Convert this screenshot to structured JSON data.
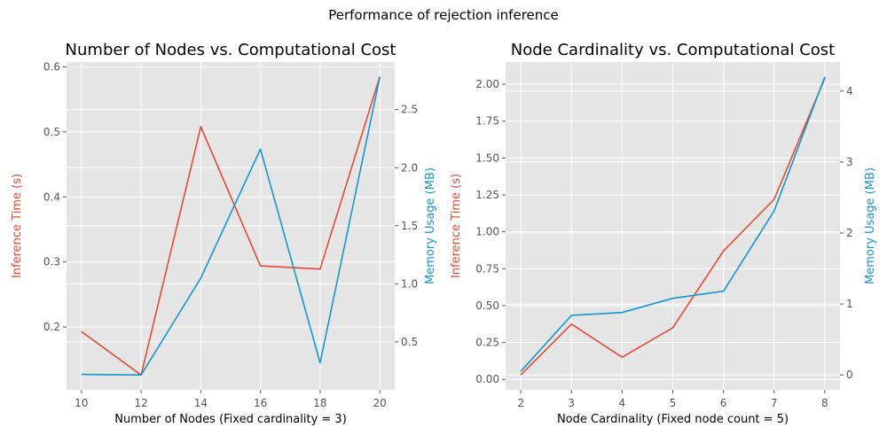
{
  "suptitle": "Performance of rejection inference",
  "colors": {
    "time": "#E24A33",
    "memory": "#1497CC",
    "panel_bg": "#E5E5E5",
    "grid": "#FFFFFF",
    "tick": "#555555"
  },
  "chart_data": [
    {
      "type": "line",
      "title": "Number of Nodes vs. Computational Cost",
      "xlabel": "Number of Nodes (Fixed cardinality = 3)",
      "ylabel": "Inference Time (s)",
      "y2label": "Memory Usage (MB)",
      "x": [
        10,
        12,
        14,
        16,
        18,
        20
      ],
      "xlim": [
        9.5,
        20.5
      ],
      "ylim": [
        0.1033,
        0.6075
      ],
      "y2lim": [
        0.087,
        2.91
      ],
      "xticks": [
        10,
        12,
        14,
        16,
        18,
        20
      ],
      "yticks": [
        0.2,
        0.3,
        0.4,
        0.5,
        0.6
      ],
      "ytick_labels": [
        "0.2",
        "0.3",
        "0.4",
        "0.5",
        "0.6"
      ],
      "y2ticks": [
        0.5,
        1.0,
        1.5,
        2.0,
        2.5
      ],
      "y2tick_labels": [
        "0.5",
        "1.0",
        "1.5",
        "2.0",
        "2.5"
      ],
      "grid": true,
      "series": [
        {
          "axis": "left",
          "values": [
            0.193,
            0.126,
            0.508,
            0.294,
            0.289,
            0.585
          ]
        },
        {
          "axis": "right",
          "values": [
            0.22,
            0.215,
            1.05,
            2.16,
            0.32,
            2.78
          ]
        }
      ]
    },
    {
      "type": "line",
      "title": "Node Cardinality vs. Computational Cost",
      "xlabel": "Node Cardinality (Fixed node count = 5)",
      "ylabel": "Inference Time (s)",
      "y2label": "Memory Usage (MB)",
      "x": [
        2,
        3,
        4,
        5,
        6,
        7,
        8
      ],
      "xlim": [
        1.7,
        8.3
      ],
      "ylim": [
        -0.0706,
        2.1504
      ],
      "y2lim": [
        -0.21,
        4.41
      ],
      "xticks": [
        2,
        3,
        4,
        5,
        6,
        7,
        8
      ],
      "yticks": [
        0.0,
        0.25,
        0.5,
        0.75,
        1.0,
        1.25,
        1.5,
        1.75,
        2.0
      ],
      "ytick_labels": [
        "0.00",
        "0.25",
        "0.50",
        "0.75",
        "1.00",
        "1.25",
        "1.50",
        "1.75",
        "2.00"
      ],
      "y2ticks": [
        0,
        1,
        2,
        3,
        4
      ],
      "y2tick_labels": [
        "0",
        "1",
        "2",
        "3",
        "4"
      ],
      "grid": true,
      "series": [
        {
          "axis": "left",
          "values": [
            0.03,
            0.375,
            0.15,
            0.35,
            0.87,
            1.22,
            2.04
          ]
        },
        {
          "axis": "right",
          "values": [
            0.05,
            0.84,
            0.88,
            1.08,
            1.18,
            2.31,
            4.2
          ]
        }
      ]
    }
  ]
}
